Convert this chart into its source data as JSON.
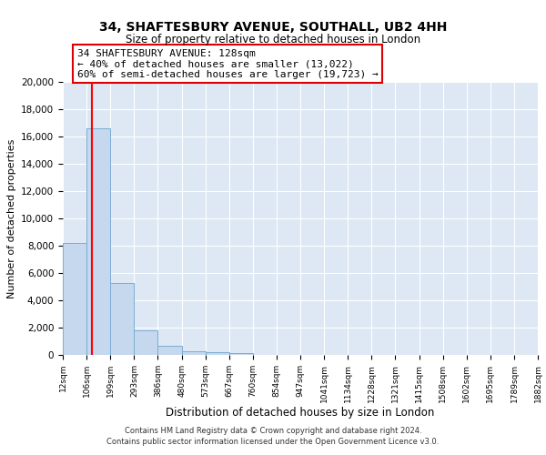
{
  "title": "34, SHAFTESBURY AVENUE, SOUTHALL, UB2 4HH",
  "subtitle": "Size of property relative to detached houses in London",
  "xlabel": "Distribution of detached houses by size in London",
  "ylabel": "Number of detached properties",
  "bar_heights": [
    8200,
    16600,
    5300,
    1800,
    700,
    300,
    200,
    150,
    0,
    0,
    0,
    0,
    0,
    0,
    0,
    0,
    0,
    0,
    0,
    0
  ],
  "bar_color": "#c5d8ee",
  "bar_edge_color": "#7aadd4",
  "red_line_x": 128,
  "annotation_title": "34 SHAFTESBURY AVENUE: 128sqm",
  "annotation_line1": "← 40% of detached houses are smaller (13,022)",
  "annotation_line2": "60% of semi-detached houses are larger (19,723) →",
  "footer1": "Contains HM Land Registry data © Crown copyright and database right 2024.",
  "footer2": "Contains public sector information licensed under the Open Government Licence v3.0.",
  "ylim": [
    0,
    20000
  ],
  "yticks": [
    0,
    2000,
    4000,
    6000,
    8000,
    10000,
    12000,
    14000,
    16000,
    18000,
    20000
  ],
  "bin_labels": [
    "12sqm",
    "106sqm",
    "199sqm",
    "293sqm",
    "386sqm",
    "480sqm",
    "573sqm",
    "667sqm",
    "760sqm",
    "854sqm",
    "947sqm",
    "1041sqm",
    "1134sqm",
    "1228sqm",
    "1321sqm",
    "1415sqm",
    "1508sqm",
    "1602sqm",
    "1695sqm",
    "1789sqm",
    "1882sqm"
  ],
  "bin_edges": [
    12,
    106,
    199,
    293,
    386,
    480,
    573,
    667,
    760,
    854,
    947,
    1041,
    1134,
    1228,
    1321,
    1415,
    1508,
    1602,
    1695,
    1789,
    1882
  ],
  "background_color": "#dde8f4",
  "grid_color": "#ffffff",
  "title_fontsize": 10,
  "subtitle_fontsize": 8.5,
  "ylabel_fontsize": 8,
  "xlabel_fontsize": 8.5,
  "ytick_fontsize": 7.5,
  "xtick_fontsize": 6.5,
  "footer_fontsize": 6,
  "annotation_fontsize": 8
}
